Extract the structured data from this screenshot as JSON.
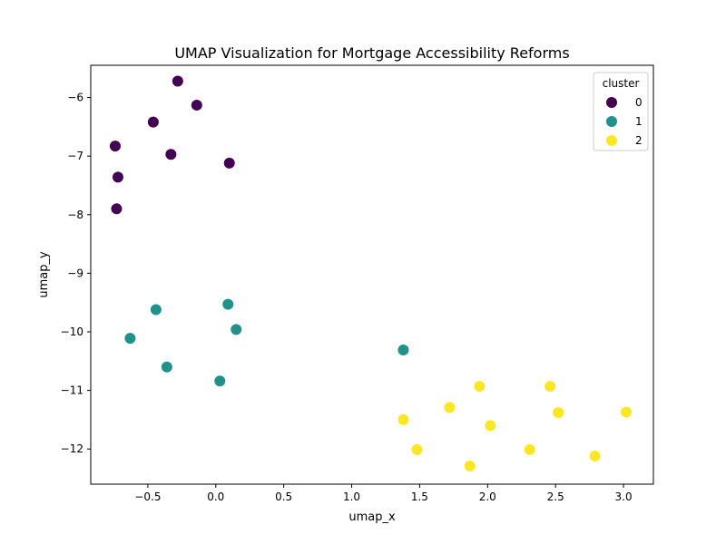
{
  "chart_data": {
    "type": "scatter",
    "title": "UMAP Visualization for Mortgage Accessibility Reforms",
    "xlabel": "umap_x",
    "ylabel": "umap_y",
    "xlim": [
      -0.92,
      3.22
    ],
    "ylim": [
      -12.6,
      -5.45
    ],
    "x_ticks": [
      -0.5,
      0.0,
      0.5,
      1.0,
      1.5,
      2.0,
      2.5,
      3.0
    ],
    "x_tick_labels": [
      "−0.5",
      "0.0",
      "0.5",
      "1.0",
      "1.5",
      "2.0",
      "2.5",
      "3.0"
    ],
    "y_ticks": [
      -6,
      -7,
      -8,
      -9,
      -10,
      -11,
      -12
    ],
    "y_tick_labels": [
      "−6",
      "−7",
      "−8",
      "−9",
      "−10",
      "−11",
      "−12"
    ],
    "grid": false,
    "legend": {
      "title": "cluster",
      "placement": "top-right"
    },
    "series": [
      {
        "name": "0",
        "color": "#440154",
        "points": [
          [
            -0.28,
            -5.72
          ],
          [
            -0.14,
            -6.13
          ],
          [
            -0.46,
            -6.42
          ],
          [
            -0.74,
            -6.83
          ],
          [
            -0.33,
            -6.97
          ],
          [
            0.1,
            -7.12
          ],
          [
            -0.72,
            -7.36
          ],
          [
            -0.73,
            -7.9
          ]
        ]
      },
      {
        "name": "1",
        "color": "#21918c",
        "points": [
          [
            0.09,
            -9.53
          ],
          [
            -0.44,
            -9.62
          ],
          [
            0.15,
            -9.96
          ],
          [
            -0.63,
            -10.11
          ],
          [
            1.38,
            -10.31
          ],
          [
            -0.36,
            -10.6
          ],
          [
            0.03,
            -10.84
          ]
        ]
      },
      {
        "name": "2",
        "color": "#fde725",
        "points": [
          [
            1.94,
            -10.93
          ],
          [
            2.46,
            -10.93
          ],
          [
            1.72,
            -11.29
          ],
          [
            3.02,
            -11.37
          ],
          [
            2.52,
            -11.38
          ],
          [
            1.38,
            -11.5
          ],
          [
            2.02,
            -11.6
          ],
          [
            1.48,
            -12.01
          ],
          [
            2.31,
            -12.01
          ],
          [
            2.79,
            -12.12
          ],
          [
            1.87,
            -12.29
          ]
        ]
      }
    ]
  }
}
